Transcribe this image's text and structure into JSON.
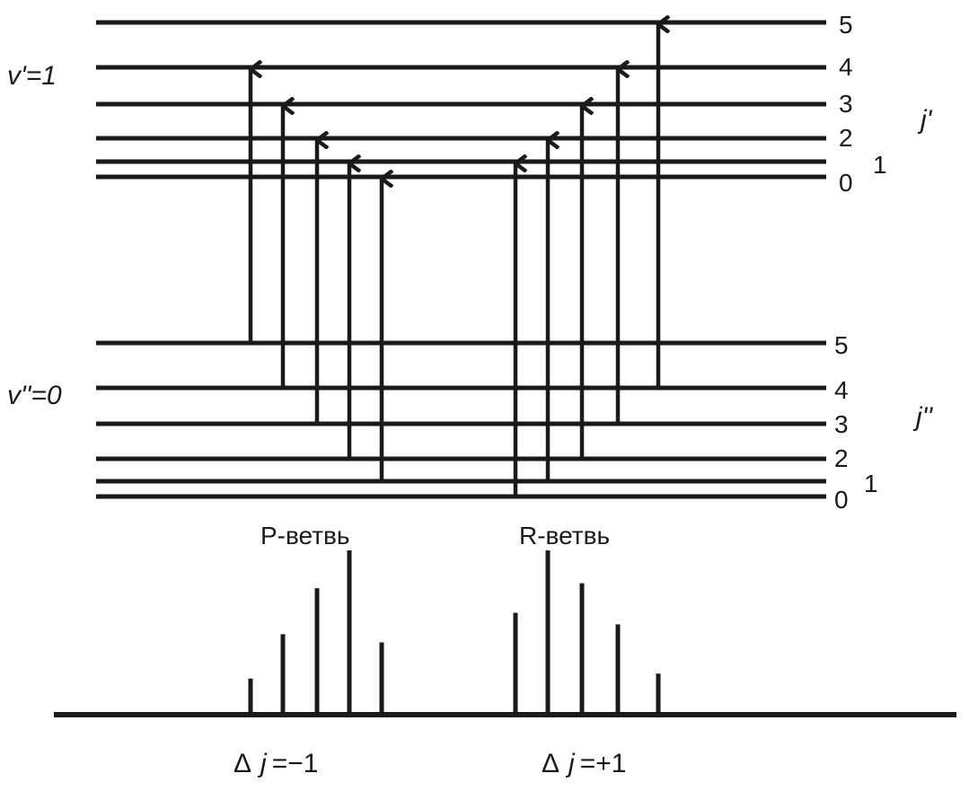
{
  "upper_state": {
    "label": "v'=1",
    "j_label": "j'",
    "levels": [
      "0",
      "1",
      "2",
      "3",
      "4",
      "5"
    ]
  },
  "lower_state": {
    "label": "v''=0",
    "j_label": "j''",
    "levels": [
      "0",
      "1",
      "2",
      "3",
      "4",
      "5"
    ]
  },
  "branches": {
    "p": {
      "name": "P-ветвь",
      "delta_prefix": "Δ",
      "delta_j": "j",
      "delta_value": "=−1",
      "transitions": [
        {
          "from_j": 5,
          "to_j": 4
        },
        {
          "from_j": 4,
          "to_j": 3
        },
        {
          "from_j": 3,
          "to_j": 2
        },
        {
          "from_j": 2,
          "to_j": 1
        },
        {
          "from_j": 1,
          "to_j": 0
        }
      ],
      "spectrum_relative_intensity": [
        0.22,
        0.49,
        0.77,
        1.0,
        0.44
      ]
    },
    "r": {
      "name": "R-ветвь",
      "delta_prefix": "Δ",
      "delta_j": "j",
      "delta_value": "=+1",
      "transitions": [
        {
          "from_j": 0,
          "to_j": 1
        },
        {
          "from_j": 1,
          "to_j": 2
        },
        {
          "from_j": 2,
          "to_j": 3
        },
        {
          "from_j": 3,
          "to_j": 4
        },
        {
          "from_j": 4,
          "to_j": 5
        }
      ],
      "spectrum_relative_intensity": [
        0.62,
        1.0,
        0.8,
        0.55,
        0.25
      ]
    }
  },
  "colors": {
    "ink": "#1a1a1a"
  }
}
